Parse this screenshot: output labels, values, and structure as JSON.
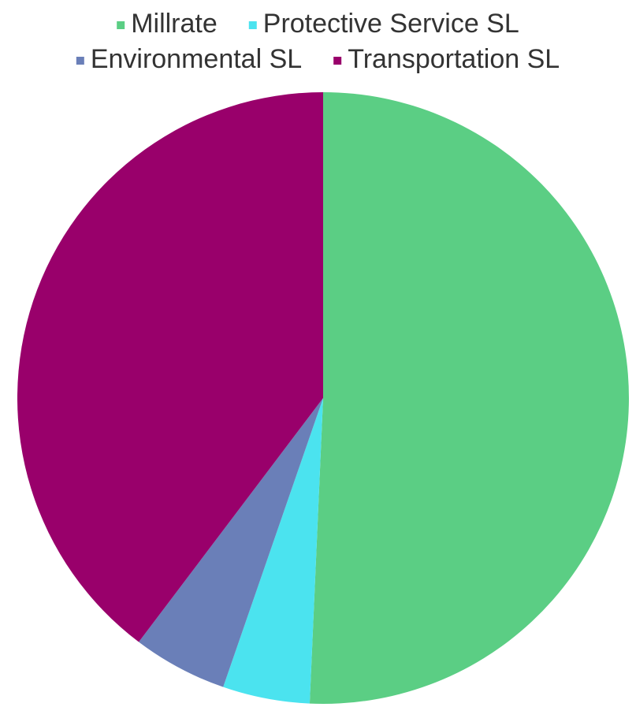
{
  "chart_data": {
    "type": "pie",
    "categories": [
      "Millrate",
      "Protective Service SL",
      "Environmental SL",
      "Transportation SL"
    ],
    "values": [
      50.7,
      4.6,
      5.0,
      39.7
    ],
    "colors": [
      "#5bce84",
      "#4be3ef",
      "#6a7fb8",
      "#99006b"
    ],
    "legend": "top"
  }
}
